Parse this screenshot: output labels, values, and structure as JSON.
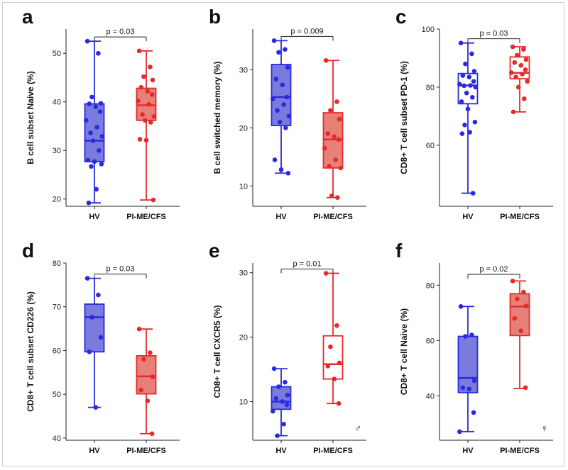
{
  "chart_data": [
    {
      "panel": "a",
      "type": "box",
      "ylabel": "B cell subset Naive (%)",
      "categories": [
        "HV",
        "PI-ME/CFS"
      ],
      "ylim": [
        18.5,
        55
      ],
      "yticks": [
        20,
        30,
        40,
        50
      ],
      "pvalue": "p = 0.03",
      "symbol": "",
      "series": [
        {
          "color": "#2a2adf",
          "fill": "#7a7adf",
          "whisker": [
            19.2,
            52.5
          ],
          "box": [
            27.7,
            32.0,
            39.6
          ],
          "points": [
            52.5,
            50.0,
            41.0,
            39.7,
            39.6,
            39.0,
            38.0,
            36.2,
            34.8,
            33.6,
            32.9,
            32.0,
            30.0,
            28.0,
            27.7,
            27.2,
            26.7,
            22.0,
            19.2
          ]
        },
        {
          "color": "#e62a2a",
          "fill": "#e8807a",
          "whisker": [
            19.8,
            50.5
          ],
          "box": [
            36.2,
            39.3,
            42.8
          ],
          "points": [
            50.5,
            47.2,
            45.2,
            44.5,
            43.0,
            42.2,
            41.5,
            40.2,
            39.5,
            37.4,
            37.0,
            36.2,
            35.8,
            32.3,
            32.1,
            19.8
          ]
        }
      ]
    },
    {
      "panel": "b",
      "type": "box",
      "ylabel": "B cell switched memory (%)",
      "categories": [
        "HV",
        "PI-ME/CFS"
      ],
      "ylim": [
        6.5,
        37
      ],
      "yticks": [
        10,
        20,
        30
      ],
      "pvalue": "p = 0.009",
      "symbol": "",
      "series": [
        {
          "color": "#2a2adf",
          "fill": "#7a7adf",
          "whisker": [
            12.2,
            35.0
          ],
          "box": [
            20.4,
            25.3,
            30.9
          ],
          "points": [
            35.0,
            33.5,
            33.0,
            30.4,
            28.4,
            27.4,
            25.3,
            25.0,
            24.0,
            23.0,
            22.0,
            21.0,
            20.0,
            14.5,
            12.8,
            12.2
          ]
        },
        {
          "color": "#e62a2a",
          "fill": "#e8807a",
          "whisker": [
            8.0,
            31.6
          ],
          "box": [
            13.1,
            18.0,
            22.6
          ],
          "points": [
            31.6,
            24.5,
            23.0,
            21.5,
            19.0,
            18.5,
            18.0,
            16.5,
            14.5,
            13.4,
            13.1,
            8.3,
            8.0
          ]
        }
      ]
    },
    {
      "panel": "c",
      "type": "box",
      "ylabel": "CD8+ T cell subset PD-1 (%)",
      "categories": [
        "HV",
        "PI-ME/CFS"
      ],
      "ylim": [
        39,
        100
      ],
      "yticks": [
        60,
        80,
        100
      ],
      "pvalue": "p = 0.03",
      "symbol": "",
      "series": [
        {
          "color": "#2a2adf",
          "fill": "#ffffff",
          "whisker": [
            43.5,
            95.2
          ],
          "box": [
            74.3,
            80.6,
            84.7
          ],
          "points": [
            95.2,
            91.5,
            88.0,
            85.5,
            84.0,
            83.5,
            82.0,
            81.0,
            80.6,
            80.5,
            80.0,
            78.0,
            76.5,
            75.0,
            72.5,
            68.0,
            67.0,
            64.5,
            64.0,
            43.5
          ]
        },
        {
          "color": "#e62a2a",
          "fill": "#ffffff",
          "whisker": [
            71.5,
            93.9
          ],
          "box": [
            82.9,
            84.9,
            90.4
          ],
          "points": [
            93.9,
            93.0,
            91.0,
            89.5,
            88.5,
            87.5,
            86.0,
            85.0,
            84.5,
            83.5,
            82.0,
            80.0,
            76.0,
            71.5
          ]
        }
      ]
    },
    {
      "panel": "d",
      "type": "box",
      "ylabel": "CD8+ T cell subset CD226 (%)",
      "categories": [
        "HV",
        "PI-ME/CFS"
      ],
      "ylim": [
        39.5,
        80
      ],
      "yticks": [
        40,
        50,
        60,
        70,
        80
      ],
      "pvalue": "p = 0.03",
      "symbol": "",
      "series": [
        {
          "color": "#2a2adf",
          "fill": "#7a7adf",
          "whisker": [
            47.0,
            76.5
          ],
          "box": [
            59.7,
            67.6,
            70.6
          ],
          "points": [
            76.5,
            72.7,
            67.6,
            63.0,
            59.7,
            47.0
          ]
        },
        {
          "color": "#e62a2a",
          "fill": "#e8807a",
          "whisker": [
            41.0,
            64.9
          ],
          "box": [
            50.1,
            54.1,
            58.8
          ],
          "points": [
            64.9,
            59.5,
            58.0,
            54.0,
            51.0,
            48.5,
            41.0
          ]
        }
      ]
    },
    {
      "panel": "e",
      "type": "box",
      "ylabel": "CD8+ T cell CXCR5 (%)",
      "categories": [
        "HV",
        "PI-ME/CFS"
      ],
      "ylim": [
        4,
        31.5
      ],
      "yticks": [
        10,
        20,
        30
      ],
      "pvalue": "p = 0.01",
      "symbol": "♂",
      "series": [
        {
          "color": "#2a2adf",
          "fill": "#7a7adf",
          "whisker": [
            4.7,
            15.1
          ],
          "box": [
            8.8,
            10.0,
            12.3
          ],
          "points": [
            15.1,
            13.0,
            12.3,
            11.0,
            10.5,
            10.0,
            9.5,
            8.5,
            6.5,
            4.7
          ]
        },
        {
          "color": "#e62a2a",
          "fill": "#ffffff",
          "whisker": [
            9.7,
            29.9
          ],
          "box": [
            13.5,
            15.8,
            20.2
          ],
          "points": [
            29.9,
            21.8,
            18.5,
            16.0,
            15.5,
            13.5,
            9.7
          ]
        }
      ]
    },
    {
      "panel": "f",
      "type": "box",
      "ylabel": "CD8+ T cell Naive (%)",
      "categories": [
        "HV",
        "PI-ME/CFS"
      ],
      "ylim": [
        24,
        88
      ],
      "yticks": [
        40,
        60,
        80
      ],
      "pvalue": "p = 0.02",
      "symbol": "♀",
      "series": [
        {
          "color": "#2a2adf",
          "fill": "#7a7adf",
          "whisker": [
            27.1,
            72.3
          ],
          "box": [
            41.2,
            46.5,
            61.5
          ],
          "points": [
            72.3,
            62.0,
            61.5,
            45.5,
            43.0,
            42.5,
            34.0,
            27.1
          ]
        },
        {
          "color": "#e62a2a",
          "fill": "#e8807a",
          "whisker": [
            42.7,
            81.5
          ],
          "box": [
            61.8,
            72.3,
            76.9
          ],
          "points": [
            81.5,
            77.5,
            75.0,
            72.5,
            68.0,
            63.5,
            43.0
          ]
        }
      ]
    }
  ]
}
